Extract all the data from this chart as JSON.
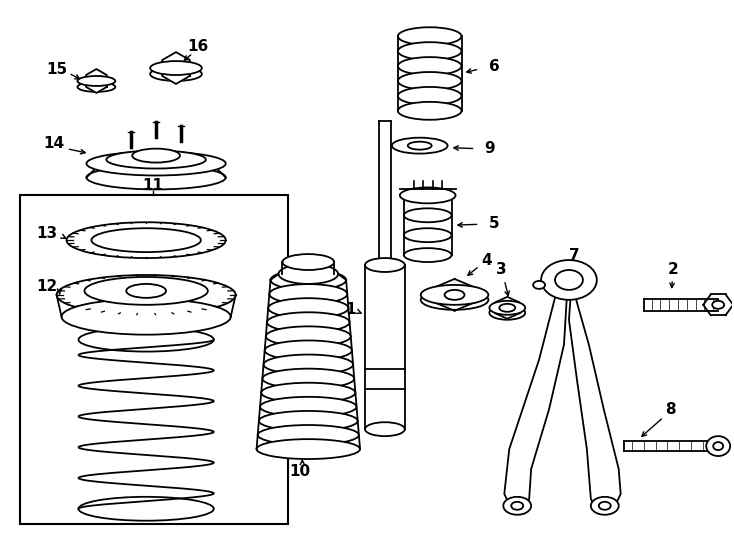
{
  "bg_color": "#ffffff",
  "line_color": "#000000",
  "figure_width": 7.34,
  "figure_height": 5.4,
  "dpi": 100
}
